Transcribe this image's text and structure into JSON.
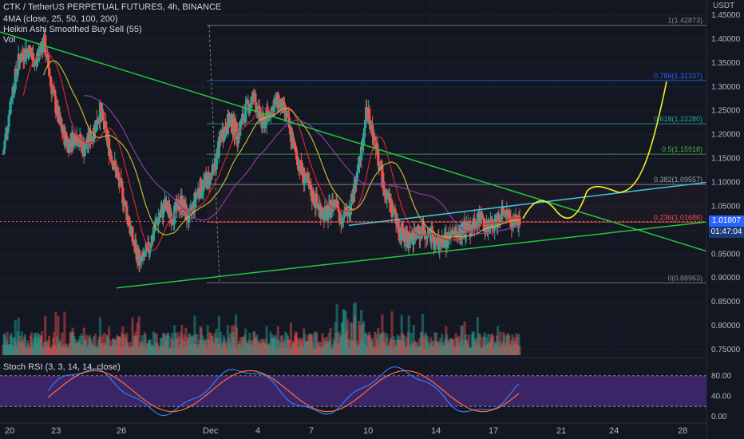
{
  "header": {
    "symbol_line": "CTK / TetherUS PERPETUAL FUTURES, 4h, BINANCE",
    "indicator_1": "4MA (close, 25, 50, 100, 200)",
    "indicator_2": "Heikin Ashi Smoothed Buy Sell  (55)",
    "indicator_3": "Vol",
    "rsi_label": "Stoch RSI (3, 3, 14, 14, close)"
  },
  "axis": {
    "currency": "USDT",
    "price_ticks": [
      "1.45000",
      "1.40000",
      "1.35000",
      "1.30000",
      "1.25000",
      "1.20000",
      "1.15000",
      "1.10000",
      "1.05000",
      "1.00000",
      "0.95000",
      "0.90000",
      "0.85000",
      "0.80000",
      "0.75000"
    ],
    "rsi_ticks": [
      "80.00",
      "40.00",
      "0.00"
    ],
    "date_ticks": [
      "20",
      "23",
      "26",
      "Dec",
      "4",
      "7",
      "10",
      "14",
      "17",
      "21",
      "24",
      "28"
    ]
  },
  "price_badge": {
    "price": "1.01807",
    "countdown": "01:47:04"
  },
  "colors": {
    "bg": "#131722",
    "up": "#26a69a",
    "down": "#ef5350",
    "trend": "#22c93a",
    "channel": "#3cc8e0",
    "forecast": "#f5f02c",
    "ma_red": "#d8232d",
    "ma_yellow": "#c9b534",
    "ma_purple": "#8e3aa6",
    "rsi_band": "#4b2b7f",
    "rsi_k": "#2f7cf6",
    "rsi_d": "#ff6d3a"
  },
  "chart_data": {
    "type": "candlestick",
    "timeframe": "4h",
    "y_range": [
      0.73,
      1.46
    ],
    "fib_levels": [
      {
        "label": "1(1.42873)",
        "value": 1.42873
      },
      {
        "label": "0.786(1.31337)",
        "value": 1.31337
      },
      {
        "label": "0.618(1.22280)",
        "value": 1.2228
      },
      {
        "label": "0.5(1.15918)",
        "value": 1.15918
      },
      {
        "label": "0.382(1.09557)",
        "value": 1.09557
      },
      {
        "label": "0.236(1.01686)",
        "value": 1.01686
      },
      {
        "label": "0(0.88963)",
        "value": 0.88963
      }
    ],
    "close_series": [
      1.16,
      1.28,
      1.36,
      1.38,
      1.35,
      1.4,
      1.3,
      1.22,
      1.18,
      1.2,
      1.17,
      1.2,
      1.25,
      1.18,
      1.12,
      1.06,
      0.98,
      0.93,
      0.96,
      1.02,
      1.05,
      1.03,
      1.06,
      1.02,
      1.08,
      1.1,
      1.12,
      1.2,
      1.23,
      1.2,
      1.25,
      1.28,
      1.22,
      1.25,
      1.27,
      1.24,
      1.17,
      1.12,
      1.08,
      1.05,
      1.03,
      1.06,
      1.02,
      1.05,
      1.13,
      1.25,
      1.18,
      1.1,
      1.05,
      1.0,
      0.98,
      0.99,
      1.0,
      0.98,
      0.97,
      0.98,
      0.99,
      1.0,
      1.01,
      1.03,
      1.0,
      1.02,
      1.05,
      1.01,
      1.02
    ],
    "stoch_rsi_range": [
      0,
      100
    ]
  }
}
